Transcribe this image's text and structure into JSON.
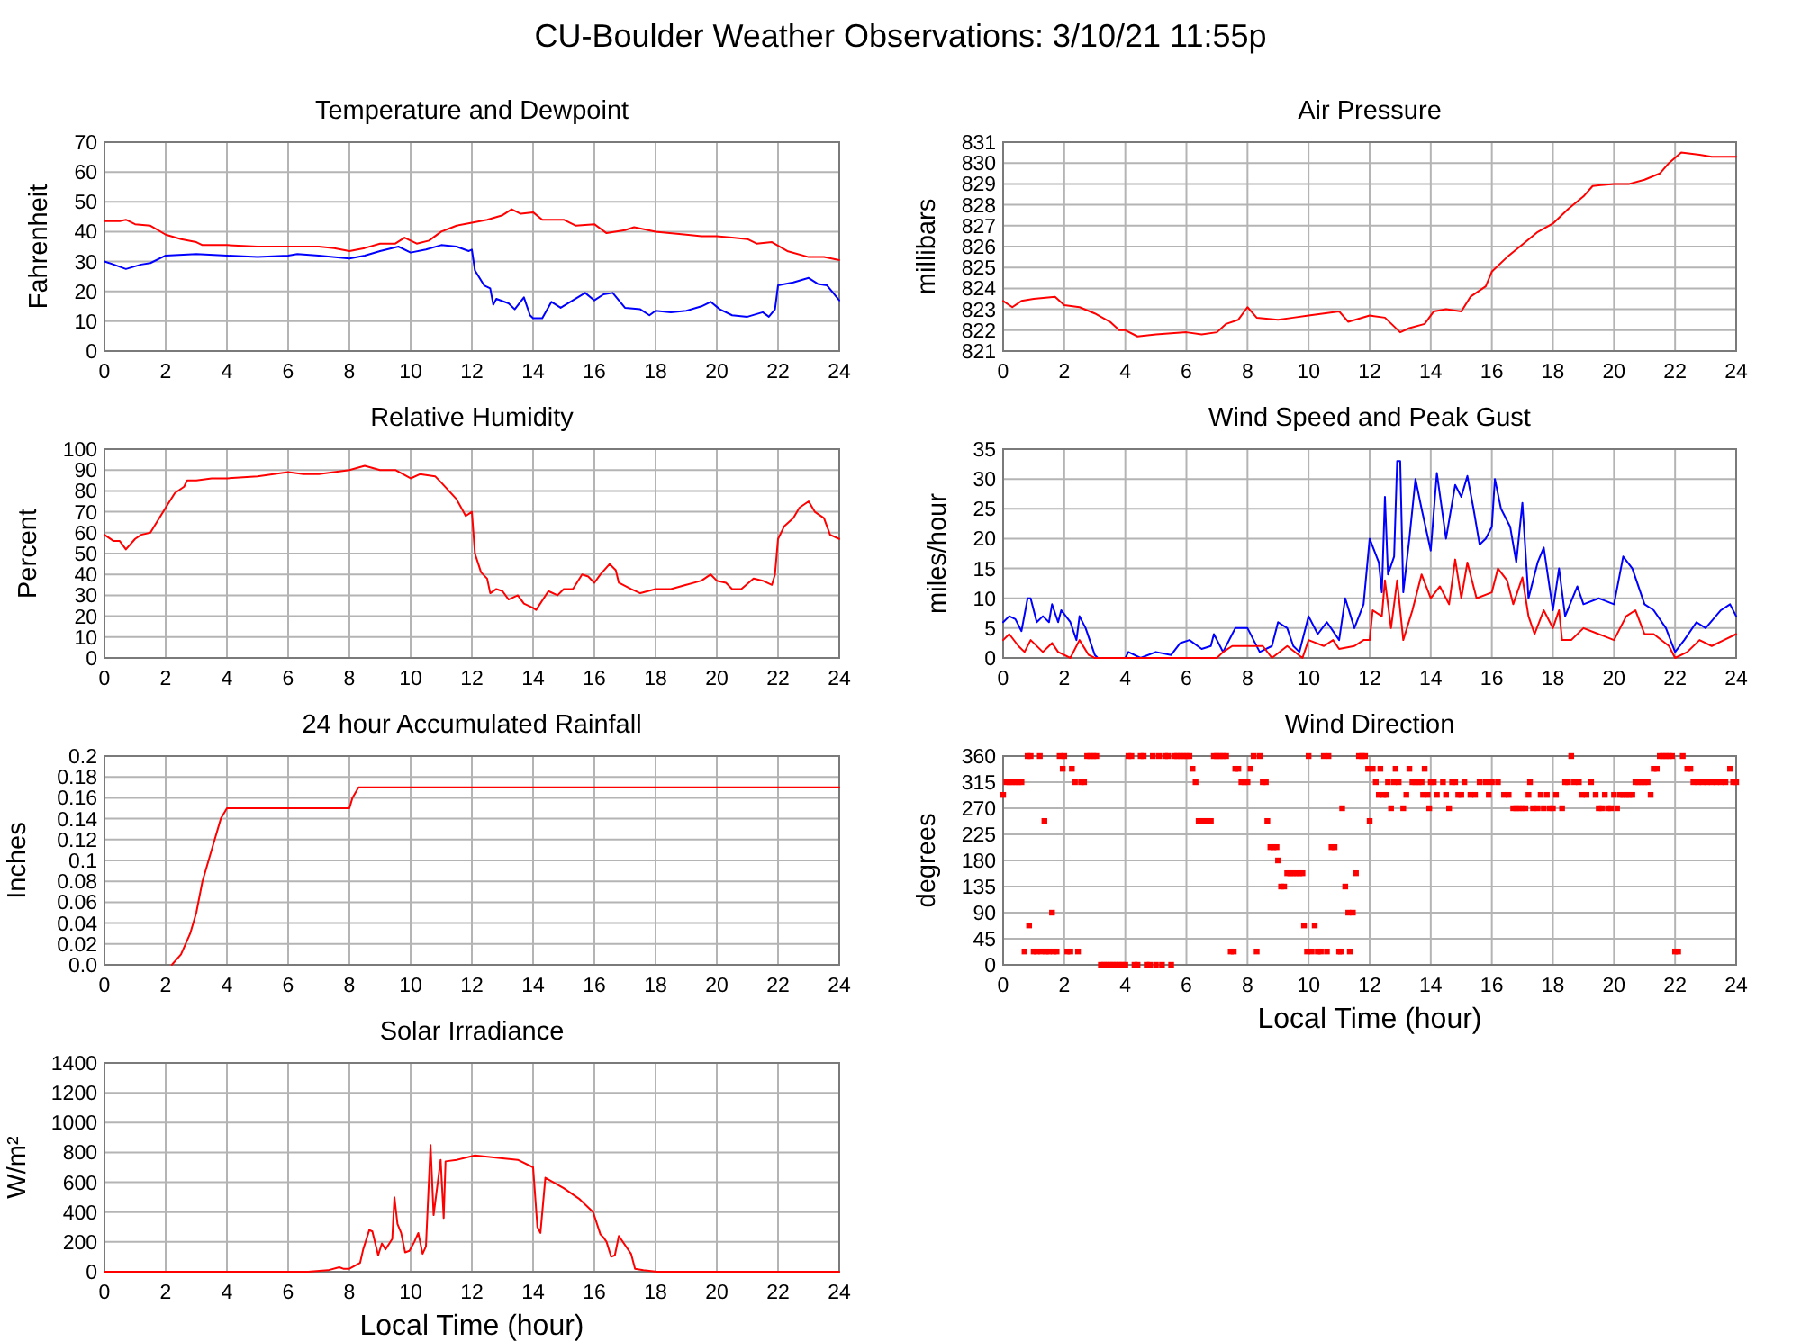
{
  "chart_data": [
    {
      "type": "other",
      "title": "CU-Boulder Weather Observations: 3/10/21 11:55p"
    },
    {
      "type": "line",
      "title": "Temperature and Dewpoint",
      "ylabel": "Fahrenheit",
      "xlim": [
        0,
        24
      ],
      "xticks": [
        0,
        2,
        4,
        6,
        8,
        10,
        12,
        14,
        16,
        18,
        20,
        22,
        24
      ],
      "ylim": [
        0,
        70
      ],
      "yticks": [
        0,
        10,
        20,
        30,
        40,
        50,
        60,
        70
      ],
      "grid": true,
      "series": [
        {
          "color": "#ff0000",
          "x": [
            0,
            0.5,
            0.7,
            1,
            1.5,
            2,
            2.5,
            3,
            3.2,
            4,
            5,
            6,
            7,
            7.5,
            8,
            8.5,
            9,
            9.5,
            9.8,
            10.2,
            10.6,
            11,
            11.5,
            12,
            12.5,
            13,
            13.3,
            13.6,
            14,
            14.3,
            15,
            15.4,
            16,
            16.4,
            17,
            17.3,
            18,
            19,
            19.5,
            20,
            20.5,
            21,
            21.3,
            21.8,
            22.3,
            23,
            23.5,
            24
          ],
          "values": [
            43.5,
            43.5,
            44,
            42.5,
            42,
            39,
            37.5,
            36.5,
            35.5,
            35.5,
            35,
            35,
            35,
            34.5,
            33.5,
            34.5,
            36,
            36,
            38,
            36,
            37,
            40,
            42,
            43,
            44,
            45.5,
            47.5,
            46,
            46.5,
            44,
            44,
            42,
            42.5,
            39.5,
            40.5,
            41.5,
            40,
            39,
            38.5,
            38.5,
            38,
            37.5,
            36,
            36.5,
            33.5,
            31.5,
            31.5,
            30.5
          ]
        },
        {
          "color": "#0000ff",
          "x": [
            0,
            0.3,
            0.7,
            1.2,
            1.5,
            2,
            3,
            4,
            5,
            6,
            6.3,
            7,
            8,
            8.5,
            9,
            9.6,
            10,
            10.5,
            11,
            11.5,
            11.9,
            12,
            12.1,
            12.4,
            12.6,
            12.7,
            12.8,
            13.2,
            13.4,
            13.7,
            13.9,
            14,
            14.3,
            14.6,
            14.9,
            15.3,
            15.7,
            16,
            16.3,
            16.6,
            17,
            17.5,
            17.8,
            18,
            18.5,
            19,
            19.5,
            19.8,
            20.1,
            20.5,
            21,
            21.5,
            21.7,
            21.9,
            22,
            22.5,
            23,
            23.3,
            23.6,
            24
          ],
          "values": [
            30,
            29,
            27.5,
            29,
            29.5,
            32,
            32.5,
            32,
            31.5,
            32,
            32.5,
            32,
            31,
            32,
            33.5,
            35,
            33,
            34,
            35.5,
            35,
            33.5,
            34,
            27,
            22,
            21,
            15.5,
            17.5,
            16,
            14,
            18,
            12,
            11,
            11,
            16.5,
            14.5,
            17,
            19.5,
            17,
            19,
            19.5,
            14.5,
            14,
            12,
            13.5,
            13,
            13.5,
            15,
            16.5,
            14,
            12,
            11.5,
            13,
            11.5,
            14,
            22,
            23,
            24.5,
            22.5,
            22,
            17
          ]
        }
      ]
    },
    {
      "type": "line",
      "title": "Air Pressure",
      "ylabel": "millibars",
      "xlim": [
        0,
        24
      ],
      "xticks": [
        0,
        2,
        4,
        6,
        8,
        10,
        12,
        14,
        16,
        18,
        20,
        22,
        24
      ],
      "ylim": [
        821,
        831
      ],
      "yticks": [
        821,
        822,
        823,
        824,
        825,
        826,
        827,
        828,
        829,
        830,
        831
      ],
      "grid": true,
      "series": [
        {
          "color": "#ff0000",
          "x": [
            0,
            0.3,
            0.6,
            1,
            1.7,
            2,
            2.5,
            3,
            3.5,
            3.8,
            4,
            4.4,
            5,
            6,
            6.5,
            7,
            7.3,
            7.7,
            8,
            8.3,
            9,
            9.5,
            10,
            10.5,
            11,
            11.3,
            12,
            12.5,
            13,
            13.3,
            13.8,
            14.1,
            14.5,
            15,
            15.3,
            15.8,
            16,
            16.5,
            17,
            17.5,
            18,
            18.5,
            19,
            19.3,
            20,
            20.5,
            21,
            21.5,
            21.8,
            22.2,
            22.8,
            23.2,
            24
          ],
          "values": [
            823.4,
            823.1,
            823.4,
            823.5,
            823.6,
            823.2,
            823.1,
            822.8,
            822.4,
            822,
            822,
            821.7,
            821.8,
            821.9,
            821.8,
            821.9,
            822.3,
            822.5,
            823.1,
            822.6,
            822.5,
            822.6,
            822.7,
            822.8,
            822.9,
            822.4,
            822.7,
            822.6,
            821.9,
            822.1,
            822.3,
            822.9,
            823,
            822.9,
            823.6,
            824.1,
            824.8,
            825.5,
            826.1,
            826.7,
            827.1,
            827.8,
            828.4,
            828.9,
            829,
            829,
            829.2,
            829.5,
            830,
            830.5,
            830.4,
            830.3,
            830.3
          ]
        }
      ]
    },
    {
      "type": "line",
      "title": "Relative Humidity",
      "ylabel": "Percent",
      "xlim": [
        0,
        24
      ],
      "xticks": [
        0,
        2,
        4,
        6,
        8,
        10,
        12,
        14,
        16,
        18,
        20,
        22,
        24
      ],
      "ylim": [
        0,
        100
      ],
      "yticks": [
        0,
        10,
        20,
        30,
        40,
        50,
        60,
        70,
        80,
        90,
        100
      ],
      "grid": true,
      "series": [
        {
          "color": "#ff0000",
          "x": [
            0,
            0.3,
            0.5,
            0.7,
            1,
            1.2,
            1.5,
            2,
            2.3,
            2.6,
            2.7,
            3,
            3.5,
            4,
            5,
            6,
            6.5,
            7,
            8,
            8.5,
            9,
            9.5,
            10,
            10.3,
            10.8,
            11,
            11.5,
            11.8,
            12,
            12.1,
            12.3,
            12.5,
            12.6,
            12.8,
            13,
            13.2,
            13.5,
            13.7,
            14,
            14.1,
            14.5,
            14.8,
            15,
            15.3,
            15.6,
            15.8,
            16,
            16.2,
            16.5,
            16.7,
            16.8,
            17.2,
            17.5,
            18,
            18.5,
            19,
            19.5,
            19.8,
            20,
            20.3,
            20.5,
            20.8,
            21.2,
            21.5,
            21.8,
            21.9,
            22,
            22.2,
            22.5,
            22.7,
            23,
            23.2,
            23.5,
            23.7,
            24
          ],
          "values": [
            59,
            56,
            56,
            52,
            57,
            59,
            60,
            72,
            79,
            82,
            85,
            85,
            86,
            86,
            87,
            89,
            88,
            88,
            90,
            92,
            90,
            90,
            86,
            88,
            87,
            84,
            76,
            68,
            70,
            50,
            41,
            38,
            31,
            33,
            32,
            28,
            30,
            26,
            24,
            23,
            32,
            30,
            33,
            33,
            40,
            39,
            36,
            40,
            45,
            42,
            36,
            33,
            31,
            33,
            33,
            35,
            37,
            40,
            37,
            36,
            33,
            33,
            38,
            37,
            35,
            40,
            57,
            63,
            67,
            72,
            75,
            70,
            67,
            59,
            57
          ]
        }
      ]
    },
    {
      "type": "line",
      "title": "Wind Speed and Peak Gust",
      "ylabel": "miles/hour",
      "xlim": [
        0,
        24
      ],
      "xticks": [
        0,
        2,
        4,
        6,
        8,
        10,
        12,
        14,
        16,
        18,
        20,
        22,
        24
      ],
      "ylim": [
        0,
        35
      ],
      "yticks": [
        0,
        5,
        10,
        15,
        20,
        25,
        30,
        35
      ],
      "grid": true,
      "series": [
        {
          "color": "#0000ff",
          "x": [
            0,
            0.2,
            0.4,
            0.6,
            0.8,
            0.9,
            1.1,
            1.3,
            1.5,
            1.6,
            1.8,
            1.9,
            2.2,
            2.4,
            2.5,
            2.7,
            3,
            3.1,
            4,
            4.1,
            4.5,
            5,
            5.5,
            5.8,
            6.1,
            6.5,
            6.8,
            6.9,
            7.2,
            7.5,
            7.6,
            8,
            8.4,
            8.8,
            9,
            9.3,
            9.5,
            9.7,
            10,
            10.3,
            10.6,
            11,
            11.2,
            11.5,
            11.8,
            12,
            12.3,
            12.4,
            12.5,
            12.6,
            12.8,
            12.9,
            13,
            13.1,
            13.3,
            13.5,
            13.7,
            14,
            14.2,
            14.5,
            14.8,
            15,
            15.2,
            15.4,
            15.6,
            15.8,
            16,
            16.1,
            16.3,
            16.6,
            16.8,
            17,
            17.2,
            17.5,
            17.7,
            18,
            18.2,
            18.4,
            18.8,
            19,
            19.5,
            20,
            20.3,
            20.6,
            21,
            21.3,
            21.7,
            22,
            22.3,
            22.7,
            23,
            23.5,
            23.8,
            24
          ],
          "values": [
            6,
            7,
            6.5,
            4.5,
            10,
            10,
            6,
            7,
            6,
            9,
            6,
            8,
            6,
            3,
            7,
            5,
            0.5,
            0,
            0,
            1,
            0,
            1,
            0.5,
            2.5,
            3,
            1.5,
            2,
            4,
            1,
            4,
            5,
            5,
            1,
            2,
            6,
            5,
            2,
            1,
            7,
            4,
            6,
            3,
            10,
            5,
            9,
            20,
            16,
            11,
            27,
            14,
            17,
            33,
            33,
            11,
            20,
            30,
            25,
            18,
            31,
            20,
            29,
            27,
            30.5,
            25,
            19,
            20,
            22,
            30,
            25,
            22,
            16,
            26,
            10,
            16,
            18.5,
            8,
            15,
            7,
            12,
            9,
            10,
            9,
            17,
            15,
            9,
            8,
            5,
            1,
            3,
            6,
            5,
            8,
            9,
            7
          ]
        },
        {
          "color": "#ff0000",
          "x": [
            0,
            0.2,
            0.5,
            0.7,
            0.9,
            1.3,
            1.6,
            1.8,
            2.2,
            2.5,
            2.8,
            3,
            7,
            7.2,
            7.5,
            8.5,
            8.8,
            9.3,
            9.8,
            10,
            10.5,
            10.8,
            11,
            11.5,
            11.8,
            12,
            12.1,
            12.4,
            12.5,
            12.7,
            12.9,
            13.1,
            13.4,
            13.7,
            14,
            14.3,
            14.6,
            14.8,
            15,
            15.2,
            15.5,
            16,
            16.2,
            16.5,
            16.7,
            17,
            17.2,
            17.4,
            17.7,
            18,
            18.2,
            18.3,
            18.6,
            19,
            19.5,
            20,
            20.4,
            20.7,
            21,
            21.3,
            21.8,
            22,
            22.4,
            22.8,
            23.2,
            23.6,
            24
          ],
          "values": [
            3,
            4,
            2,
            1,
            3,
            1,
            2.5,
            1,
            0,
            3,
            0.5,
            0,
            0,
            1,
            2,
            2,
            0,
            2,
            0,
            3,
            2,
            3,
            1.5,
            2,
            3,
            3,
            8,
            7,
            13,
            5,
            13,
            3,
            8,
            14,
            10,
            12,
            9,
            16.5,
            10,
            16,
            10,
            11,
            15,
            13,
            9,
            13.5,
            7,
            4,
            8,
            5,
            8,
            3,
            3,
            5,
            4,
            3,
            7,
            8,
            4,
            4,
            2,
            0,
            1,
            3,
            2,
            3,
            4
          ]
        }
      ]
    },
    {
      "type": "line",
      "title": "24 hour Accumulated Rainfall",
      "ylabel": "Inches",
      "xlim": [
        0,
        24
      ],
      "xticks": [
        0,
        2,
        4,
        6,
        8,
        10,
        12,
        14,
        16,
        18,
        20,
        22,
        24
      ],
      "ylim": [
        0,
        0.2
      ],
      "yticks": [
        {
          "value": 0,
          "label": "0.0"
        },
        0.02,
        0.04,
        0.06,
        0.08,
        0.1,
        0.12,
        0.14,
        0.16,
        0.18,
        0.2
      ],
      "grid": true,
      "series": [
        {
          "color": "#ff0000",
          "x": [
            2.2,
            2.5,
            2.8,
            3,
            3.2,
            3.4,
            3.6,
            3.8,
            4,
            8,
            8.1,
            8.3,
            24
          ],
          "values": [
            0,
            0.01,
            0.03,
            0.05,
            0.08,
            0.1,
            0.12,
            0.14,
            0.15,
            0.15,
            0.16,
            0.17,
            0.17
          ]
        }
      ]
    },
    {
      "type": "scatter",
      "title": "Wind Direction",
      "ylabel": "degrees",
      "xlabel": "Local Time (hour)",
      "xlim": [
        0,
        24
      ],
      "xticks": [
        0,
        2,
        4,
        6,
        8,
        10,
        12,
        14,
        16,
        18,
        20,
        22,
        24
      ],
      "ylim": [
        0,
        360
      ],
      "yticks": [
        0,
        45,
        90,
        135,
        180,
        225,
        270,
        315,
        360
      ],
      "grid": true,
      "marker": "square",
      "series": [
        {
          "color": "#ff0000",
          "x": [
            0,
            0.1,
            0.2,
            0.3,
            0.4,
            0.5,
            0.6,
            0.7,
            0.8,
            0.85,
            0.9,
            1,
            1.1,
            1.2,
            1.25,
            1.35,
            1.4,
            1.5,
            1.6,
            1.65,
            1.75,
            1.85,
            1.95,
            2,
            2.1,
            2.2,
            2.25,
            2.35,
            2.45,
            2.55,
            2.65,
            2.75,
            2.85,
            2.95,
            3.05,
            3.2,
            3.3,
            3.4,
            3.5,
            3.6,
            3.7,
            3.8,
            3.9,
            4,
            4.1,
            4.2,
            4.3,
            4.4,
            4.5,
            4.6,
            4.7,
            4.8,
            4.9,
            5,
            5.1,
            5.2,
            5.3,
            5.4,
            5.5,
            5.6,
            5.7,
            5.8,
            5.9,
            6,
            6.1,
            6.2,
            6.3,
            6.4,
            6.5,
            6.6,
            6.7,
            6.8,
            6.9,
            7,
            7.1,
            7.2,
            7.3,
            7.45,
            7.55,
            7.6,
            7.7,
            7.8,
            7.9,
            8,
            8.1,
            8.2,
            8.3,
            8.4,
            8.5,
            8.6,
            8.65,
            8.75,
            8.85,
            8.95,
            9,
            9.1,
            9.2,
            9.3,
            9.4,
            9.5,
            9.6,
            9.7,
            9.8,
            9.85,
            9.95,
            10,
            10.1,
            10.2,
            10.3,
            10.4,
            10.5,
            10.6,
            10.65,
            10.75,
            10.85,
            11,
            11.05,
            11.1,
            11.2,
            11.3,
            11.35,
            11.45,
            11.55,
            11.65,
            11.75,
            11.85,
            11.95,
            12,
            12.1,
            12.2,
            12.3,
            12.35,
            12.45,
            12.55,
            12.6,
            12.7,
            12.8,
            12.85,
            12.95,
            13.1,
            13.2,
            13.3,
            13.4,
            13.5,
            13.6,
            13.7,
            13.75,
            13.8,
            13.9,
            13.95,
            14,
            14.1,
            14.2,
            14.4,
            14.5,
            14.6,
            14.7,
            14.8,
            14.9,
            15,
            15.1,
            15.3,
            15.45,
            15.6,
            15.8,
            15.9,
            16,
            16.2,
            16.4,
            16.55,
            16.7,
            16.8,
            16.9,
            17,
            17.1,
            17.2,
            17.25,
            17.35,
            17.5,
            17.6,
            17.7,
            17.8,
            17.9,
            18,
            18.1,
            18.3,
            18.4,
            18.5,
            18.6,
            18.7,
            18.85,
            18.95,
            19.1,
            19.25,
            19.4,
            19.5,
            19.6,
            19.7,
            19.8,
            19.9,
            20,
            20.1,
            20.2,
            20.3,
            20.4,
            20.5,
            20.6,
            20.7,
            20.8,
            20.9,
            21,
            21.1,
            21.2,
            21.3,
            21.4,
            21.5,
            21.6,
            21.7,
            21.8,
            21.9,
            22,
            22.1,
            22.25,
            22.4,
            22.5,
            22.6,
            22.75,
            22.9,
            23.05,
            23.2,
            23.35,
            23.5,
            23.65,
            23.8,
            23.9,
            24
          ],
          "values": [
            293,
            315,
            315,
            315,
            315,
            315,
            315,
            23,
            360,
            68,
            360,
            23,
            23,
            360,
            23,
            248,
            23,
            23,
            90,
            23,
            23,
            360,
            338,
            360,
            23,
            23,
            338,
            315,
            23,
            315,
            315,
            360,
            360,
            360,
            360,
            0,
            0,
            0,
            0,
            0,
            0,
            0,
            0,
            0,
            360,
            360,
            0,
            0,
            360,
            360,
            0,
            0,
            360,
            0,
            360,
            0,
            360,
            360,
            0,
            360,
            360,
            360,
            360,
            360,
            360,
            338,
            315,
            248,
            248,
            248,
            248,
            248,
            360,
            360,
            360,
            360,
            360,
            23,
            23,
            338,
            338,
            315,
            315,
            315,
            338,
            360,
            23,
            360,
            315,
            315,
            248,
            203,
            203,
            203,
            180,
            135,
            135,
            158,
            158,
            158,
            158,
            158,
            158,
            68,
            23,
            360,
            23,
            68,
            23,
            23,
            360,
            23,
            360,
            203,
            203,
            23,
            23,
            270,
            135,
            90,
            23,
            90,
            158,
            360,
            360,
            360,
            338,
            248,
            338,
            315,
            293,
            338,
            293,
            293,
            315,
            270,
            315,
            338,
            315,
            270,
            293,
            338,
            315,
            315,
            315,
            315,
            293,
            338,
            293,
            270,
            315,
            315,
            293,
            315,
            293,
            270,
            315,
            315,
            293,
            293,
            315,
            293,
            293,
            315,
            315,
            293,
            315,
            315,
            293,
            293,
            270,
            270,
            270,
            270,
            270,
            293,
            315,
            270,
            270,
            293,
            270,
            293,
            270,
            270,
            293,
            270,
            315,
            315,
            360,
            315,
            315,
            293,
            293,
            315,
            293,
            270,
            270,
            293,
            270,
            270,
            293,
            270,
            293,
            293,
            293,
            293,
            293,
            315,
            315,
            315,
            315,
            315,
            293,
            338,
            338,
            360,
            360,
            360,
            360,
            360,
            23,
            23,
            360,
            338,
            338,
            315,
            315,
            315,
            315,
            315,
            315,
            315,
            315,
            338,
            315,
            315
          ]
        }
      ]
    },
    {
      "type": "line",
      "title": "Solar Irradiance",
      "ylabel": "W/m²",
      "xlabel": "Local Time (hour)",
      "xlim": [
        0,
        24
      ],
      "xticks": [
        0,
        2,
        4,
        6,
        8,
        10,
        12,
        14,
        16,
        18,
        20,
        22,
        24
      ],
      "ylim": [
        0,
        1400
      ],
      "yticks": [
        0,
        200,
        400,
        600,
        800,
        1000,
        1200,
        1400
      ],
      "grid": true,
      "series": [
        {
          "color": "#ff0000",
          "x": [
            0,
            6.65,
            7.3,
            7.67,
            7.8,
            8,
            8.35,
            8.45,
            8.65,
            8.75,
            8.94,
            9.06,
            9.18,
            9.4,
            9.47,
            9.57,
            9.69,
            9.82,
            9.96,
            10.12,
            10.25,
            10.39,
            10.5,
            10.65,
            10.75,
            10.98,
            11.08,
            11.14,
            11.5,
            12.1,
            13,
            13.5,
            14,
            14.14,
            14.24,
            14.4,
            15,
            15.5,
            15.96,
            16.2,
            16.3,
            16.4,
            16.55,
            16.67,
            16.8,
            17.2,
            17.33,
            17.6,
            18.05,
            24
          ],
          "values": [
            0,
            0,
            10,
            30,
            20,
            20,
            60,
            150,
            280,
            270,
            110,
            190,
            150,
            220,
            500,
            320,
            260,
            130,
            140,
            200,
            260,
            120,
            170,
            850,
            380,
            750,
            360,
            740,
            750,
            780,
            760,
            750,
            700,
            300,
            260,
            630,
            560,
            490,
            400,
            250,
            230,
            200,
            100,
            110,
            240,
            120,
            20,
            10,
            0,
            0
          ]
        }
      ]
    }
  ]
}
